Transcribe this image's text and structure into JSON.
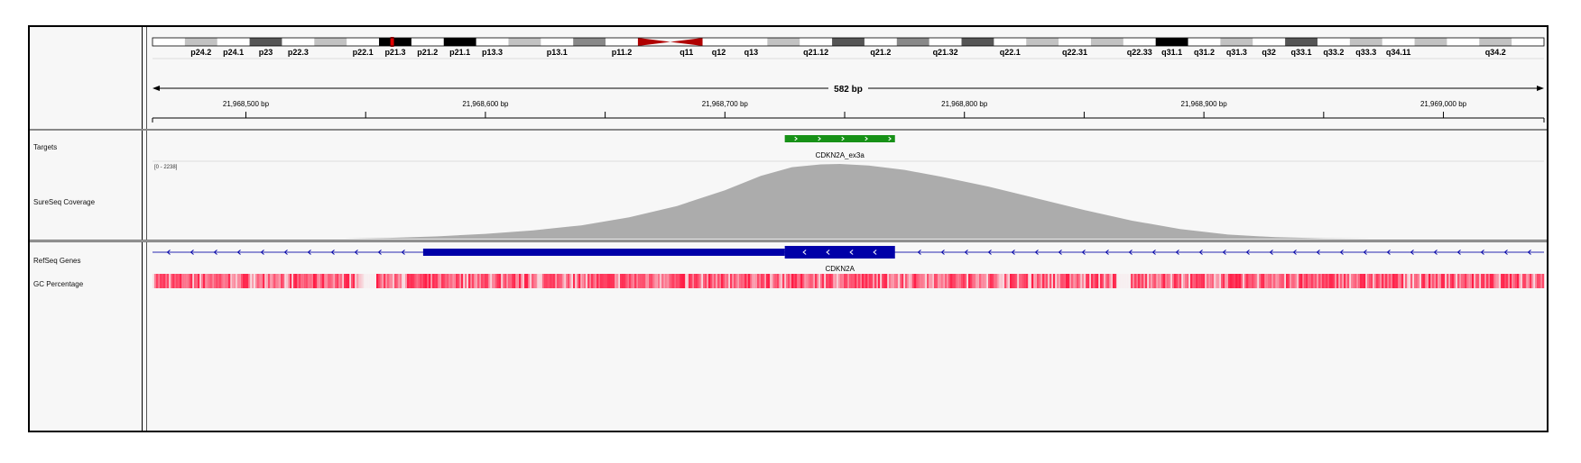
{
  "ideogram": {
    "bands": [
      {
        "name": "p24.3",
        "stain": "gneg"
      },
      {
        "name": "p24.2",
        "stain": "gpos25"
      },
      {
        "name": "p24.1",
        "stain": "gneg"
      },
      {
        "name": "p23",
        "stain": "gpos75"
      },
      {
        "name": "p22.3",
        "stain": "gneg"
      },
      {
        "name": "p22.2",
        "stain": "gpos25"
      },
      {
        "name": "p22.1",
        "stain": "gneg"
      },
      {
        "name": "p21.3",
        "stain": "gpos100"
      },
      {
        "name": "p21.2",
        "stain": "gneg"
      },
      {
        "name": "p21.1",
        "stain": "gpos100"
      },
      {
        "name": "p13.3",
        "stain": "gneg"
      },
      {
        "name": "p13.2",
        "stain": "gpos25"
      },
      {
        "name": "p13.1",
        "stain": "gneg"
      },
      {
        "name": "p12",
        "stain": "gpos50"
      },
      {
        "name": "p11.2",
        "stain": "gneg"
      },
      {
        "name": "p11.1",
        "stain": "acen"
      },
      {
        "name": "q11",
        "stain": "acen"
      },
      {
        "name": "q12",
        "stain": "gneg"
      },
      {
        "name": "q13",
        "stain": "gneg"
      },
      {
        "name": "q21.11",
        "stain": "gpos25"
      },
      {
        "name": "q21.12",
        "stain": "gneg"
      },
      {
        "name": "q21.13",
        "stain": "gpos75"
      },
      {
        "name": "q21.2",
        "stain": "gneg"
      },
      {
        "name": "q21.31",
        "stain": "gpos50"
      },
      {
        "name": "q21.32",
        "stain": "gneg"
      },
      {
        "name": "q21.33",
        "stain": "gpos75"
      },
      {
        "name": "q22.1",
        "stain": "gneg"
      },
      {
        "name": "q22.2",
        "stain": "gpos25"
      },
      {
        "name": "q22.31",
        "stain": "gneg"
      },
      {
        "name": "q22.32",
        "stain": "gpos25"
      },
      {
        "name": "q22.33",
        "stain": "gneg"
      },
      {
        "name": "q31.1",
        "stain": "gpos100"
      },
      {
        "name": "q31.2",
        "stain": "gneg"
      },
      {
        "name": "q31.3",
        "stain": "gpos25"
      },
      {
        "name": "q32",
        "stain": "gneg"
      },
      {
        "name": "q33.1",
        "stain": "gpos75"
      },
      {
        "name": "q33.2",
        "stain": "gneg"
      },
      {
        "name": "q33.3",
        "stain": "gpos25"
      },
      {
        "name": "q34.11",
        "stain": "gneg"
      },
      {
        "name": "q34.12",
        "stain": "gpos25"
      },
      {
        "name": "q34.13",
        "stain": "gneg"
      },
      {
        "name": "q34.2",
        "stain": "gpos25"
      },
      {
        "name": "q34.3",
        "stain": "gneg"
      }
    ],
    "visible_labels": [
      "p24.2",
      "p24.1",
      "p23",
      "p22.3",
      "p22.1",
      "p21.3",
      "p21.2",
      "p21.1",
      "p13.3",
      "p13.1",
      "p11.2",
      "q11",
      "q12",
      "q13",
      "q21.12",
      "q21.2",
      "q21.32",
      "q22.1",
      "q22.31",
      "q22.33",
      "q31.1",
      "q31.2",
      "q31.3",
      "q32",
      "q33.1",
      "q33.2",
      "q33.3",
      "q34.11",
      "q34.2"
    ],
    "current_locus_band": "p21.3"
  },
  "ruler": {
    "span_label": "582 bp",
    "view_start": 21968461,
    "view_end": 21969042,
    "ticks": [
      {
        "pos": 21968500,
        "label": "21,968,500 bp"
      },
      {
        "pos": 21968550,
        "label": ""
      },
      {
        "pos": 21968600,
        "label": "21,968,600 bp"
      },
      {
        "pos": 21968650,
        "label": ""
      },
      {
        "pos": 21968700,
        "label": "21,968,700 bp"
      },
      {
        "pos": 21968750,
        "label": ""
      },
      {
        "pos": 21968800,
        "label": "21,968,800 bp"
      },
      {
        "pos": 21968850,
        "label": ""
      },
      {
        "pos": 21968900,
        "label": "21,968,900 bp"
      },
      {
        "pos": 21968950,
        "label": ""
      },
      {
        "pos": 21969000,
        "label": "21,969,000 bp"
      }
    ]
  },
  "tracks": {
    "targets": {
      "name": "Targets",
      "feature": {
        "label": "CDKN2A_ex3a",
        "start": 21968725,
        "end": 21968771,
        "strand": "+",
        "color": "#179117"
      }
    },
    "coverage": {
      "name": "SureSeq Coverage",
      "range_label": "[0 - 2238]",
      "max": 2238,
      "color": "#acacac",
      "profile": [
        [
          21968461,
          0
        ],
        [
          21968540,
          0
        ],
        [
          21968560,
          25
        ],
        [
          21968580,
          70
        ],
        [
          21968600,
          145
        ],
        [
          21968620,
          250
        ],
        [
          21968640,
          400
        ],
        [
          21968660,
          640
        ],
        [
          21968680,
          980
        ],
        [
          21968700,
          1450
        ],
        [
          21968715,
          1880
        ],
        [
          21968728,
          2140
        ],
        [
          21968740,
          2225
        ],
        [
          21968748,
          2238
        ],
        [
          21968760,
          2190
        ],
        [
          21968775,
          2060
        ],
        [
          21968790,
          1860
        ],
        [
          21968810,
          1560
        ],
        [
          21968830,
          1210
        ],
        [
          21968850,
          860
        ],
        [
          21968870,
          540
        ],
        [
          21968890,
          290
        ],
        [
          21968910,
          125
        ],
        [
          21968930,
          45
        ],
        [
          21968950,
          12
        ],
        [
          21968970,
          0
        ],
        [
          21969042,
          0
        ]
      ]
    },
    "refseq": {
      "name": "RefSeq Genes",
      "gene": {
        "label": "CDKN2A",
        "strand": "-",
        "utr": [
          21968574,
          21968725
        ],
        "cds": [
          21968725,
          21968771
        ],
        "color": "#0000a8"
      }
    },
    "gc": {
      "name": "GC Percentage"
    }
  },
  "colors": {
    "gpos100": "#000000",
    "gpos75": "#555555",
    "gpos50": "#888888",
    "gpos25": "#c2c2c2",
    "gneg": "#ffffff",
    "acen": "#b00000",
    "current_locus": "#e00000",
    "gc_high": "#ff1b44"
  }
}
